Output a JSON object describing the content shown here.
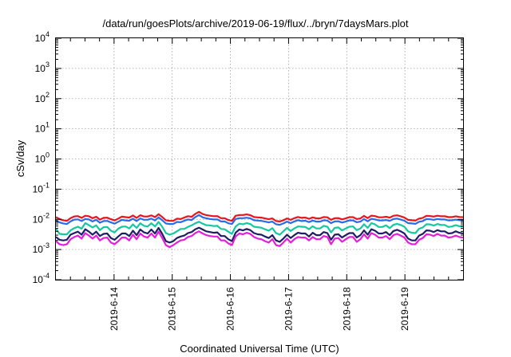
{
  "chart_data": {
    "type": "line",
    "title": "/data/run/goesPlots/archive/2019-06-19/flux/../bryn/7daysMars.plot",
    "xlabel": "Coordinated Universal Time (UTC)",
    "ylabel": "cSv/day",
    "yscale": "log",
    "ylim": [
      0.0001,
      10000
    ],
    "ytick_labels": [
      {
        "base": "10",
        "exp": "-4"
      },
      {
        "base": "10",
        "exp": "-3"
      },
      {
        "base": "10",
        "exp": "-2"
      },
      {
        "base": "10",
        "exp": "-1"
      },
      {
        "base": "10",
        "exp": "0"
      },
      {
        "base": "10",
        "exp": "1"
      },
      {
        "base": "10",
        "exp": "2"
      },
      {
        "base": "10",
        "exp": "3"
      },
      {
        "base": "10",
        "exp": "4"
      }
    ],
    "xlim": [
      "2019-06-13 00:00",
      "2019-06-20 00:00"
    ],
    "xtick_labels": [
      "2019-6-14",
      "2019-6-15",
      "2019-6-16",
      "2019-6-17",
      "2019-6-18",
      "2019-6-19"
    ],
    "grid": true,
    "legend": "none",
    "series": [
      {
        "color": "#e8141e",
        "values": [
          0.0118,
          0.0102,
          0.0093,
          0.0089,
          0.011,
          0.0125,
          0.0128,
          0.0112,
          0.0132,
          0.0126,
          0.0109,
          0.0122,
          0.0098,
          0.0112,
          0.0113,
          0.0101,
          0.0092,
          0.0106,
          0.0123,
          0.0118,
          0.0115,
          0.0134,
          0.0112,
          0.0137,
          0.0124,
          0.0124,
          0.0135,
          0.0118,
          0.0148,
          0.0119,
          0.0093,
          0.0089,
          0.0089,
          0.0105,
          0.0102,
          0.0115,
          0.0127,
          0.0121,
          0.0152,
          0.0178,
          0.015,
          0.0138,
          0.0132,
          0.0127,
          0.0128,
          0.0109,
          0.0109,
          0.0095,
          0.0089,
          0.0131,
          0.0139,
          0.0139,
          0.0145,
          0.0138,
          0.0119,
          0.0116,
          0.0114,
          0.0107,
          0.0101,
          0.0107,
          0.0088,
          0.0085,
          0.0093,
          0.0107,
          0.0096,
          0.0109,
          0.012,
          0.0112,
          0.0115,
          0.0104,
          0.0116,
          0.0108,
          0.0108,
          0.0119,
          0.0117,
          0.0096,
          0.0109,
          0.011,
          0.01,
          0.0107,
          0.0118,
          0.0118,
          0.0102,
          0.0107,
          0.013,
          0.011,
          0.0133,
          0.0128,
          0.0117,
          0.0117,
          0.0122,
          0.0114,
          0.0131,
          0.0136,
          0.0126,
          0.0115,
          0.0096,
          0.0093,
          0.0091,
          0.0106,
          0.0112,
          0.0131,
          0.0129,
          0.0123,
          0.0132,
          0.0126,
          0.0127,
          0.0118,
          0.0119,
          0.0126,
          0.012,
          0.0118
        ]
      },
      {
        "color": "#2b6be8",
        "values": [
          0.0092,
          0.0079,
          0.0073,
          0.007,
          0.0086,
          0.0098,
          0.01,
          0.0088,
          0.0103,
          0.0099,
          0.0085,
          0.0096,
          0.0077,
          0.0088,
          0.0089,
          0.0079,
          0.0072,
          0.0083,
          0.0096,
          0.0092,
          0.009,
          0.0105,
          0.0088,
          0.0107,
          0.0097,
          0.0097,
          0.0106,
          0.0092,
          0.0116,
          0.0093,
          0.0073,
          0.007,
          0.007,
          0.0082,
          0.008,
          0.009,
          0.0099,
          0.0095,
          0.0119,
          0.0139,
          0.0117,
          0.0108,
          0.0103,
          0.0099,
          0.01,
          0.0085,
          0.0085,
          0.0074,
          0.007,
          0.0102,
          0.0109,
          0.0109,
          0.0113,
          0.0108,
          0.0093,
          0.0091,
          0.0089,
          0.0084,
          0.0079,
          0.0084,
          0.0069,
          0.0066,
          0.0073,
          0.0084,
          0.0075,
          0.0085,
          0.0094,
          0.0088,
          0.009,
          0.0081,
          0.0091,
          0.0084,
          0.0084,
          0.0093,
          0.0091,
          0.0075,
          0.0085,
          0.0086,
          0.0078,
          0.0084,
          0.0092,
          0.0092,
          0.008,
          0.0084,
          0.0102,
          0.0086,
          0.0104,
          0.01,
          0.0092,
          0.0092,
          0.0095,
          0.0089,
          0.0102,
          0.0106,
          0.0098,
          0.009,
          0.0075,
          0.0073,
          0.0071,
          0.0083,
          0.0088,
          0.0102,
          0.0101,
          0.0096,
          0.0103,
          0.0099,
          0.0099,
          0.0092,
          0.0093,
          0.0098,
          0.0094,
          0.0092
        ]
      },
      {
        "color": "#14c8a0",
        "values": [
          0.0049,
          0.0033,
          0.0032,
          0.0032,
          0.0043,
          0.0051,
          0.0057,
          0.0049,
          0.0075,
          0.0064,
          0.0054,
          0.0063,
          0.0044,
          0.0055,
          0.0056,
          0.0042,
          0.0037,
          0.0049,
          0.0057,
          0.0058,
          0.005,
          0.0068,
          0.0052,
          0.0074,
          0.0061,
          0.0058,
          0.0074,
          0.0058,
          0.0082,
          0.0057,
          0.0035,
          0.0031,
          0.0034,
          0.004,
          0.0048,
          0.0048,
          0.0056,
          0.0063,
          0.0074,
          0.0083,
          0.0072,
          0.0064,
          0.0063,
          0.006,
          0.0061,
          0.0048,
          0.0047,
          0.0039,
          0.0033,
          0.0058,
          0.0072,
          0.0069,
          0.0075,
          0.007,
          0.0057,
          0.0055,
          0.0053,
          0.0047,
          0.0042,
          0.0051,
          0.0035,
          0.0031,
          0.004,
          0.0052,
          0.0041,
          0.005,
          0.0058,
          0.0057,
          0.0056,
          0.0047,
          0.0059,
          0.005,
          0.005,
          0.0061,
          0.0057,
          0.0037,
          0.0052,
          0.0054,
          0.0043,
          0.005,
          0.0057,
          0.0058,
          0.0044,
          0.005,
          0.0069,
          0.0052,
          0.0075,
          0.0068,
          0.0056,
          0.0056,
          0.0063,
          0.0051,
          0.0066,
          0.0071,
          0.0065,
          0.0057,
          0.004,
          0.0036,
          0.0035,
          0.0049,
          0.0054,
          0.0069,
          0.0068,
          0.0062,
          0.007,
          0.0065,
          0.0065,
          0.0056,
          0.0058,
          0.0064,
          0.0059,
          0.0057
        ]
      },
      {
        "color": "#1e1e64",
        "values": [
          0.0026,
          0.0021,
          0.002,
          0.0021,
          0.0031,
          0.0035,
          0.0039,
          0.0031,
          0.0047,
          0.0039,
          0.0031,
          0.0039,
          0.0028,
          0.0033,
          0.0034,
          0.0024,
          0.0021,
          0.0027,
          0.0034,
          0.0034,
          0.0028,
          0.0042,
          0.003,
          0.0046,
          0.0037,
          0.0034,
          0.0046,
          0.0034,
          0.0052,
          0.0033,
          0.0019,
          0.0017,
          0.0019,
          0.0024,
          0.0027,
          0.0029,
          0.0035,
          0.0038,
          0.0047,
          0.0053,
          0.0046,
          0.004,
          0.0038,
          0.0036,
          0.0037,
          0.0028,
          0.0028,
          0.0022,
          0.0019,
          0.0036,
          0.0046,
          0.0043,
          0.0048,
          0.0044,
          0.0035,
          0.0032,
          0.0031,
          0.0027,
          0.0024,
          0.003,
          0.002,
          0.0018,
          0.0023,
          0.0031,
          0.0024,
          0.003,
          0.0036,
          0.0034,
          0.0034,
          0.0027,
          0.0036,
          0.003,
          0.003,
          0.0038,
          0.0035,
          0.0021,
          0.0031,
          0.0032,
          0.0025,
          0.003,
          0.0035,
          0.0035,
          0.0025,
          0.003,
          0.0043,
          0.0031,
          0.0047,
          0.0042,
          0.0034,
          0.0034,
          0.0038,
          0.003,
          0.0041,
          0.0045,
          0.004,
          0.0034,
          0.0023,
          0.002,
          0.002,
          0.0029,
          0.0033,
          0.0043,
          0.0042,
          0.0038,
          0.0044,
          0.004,
          0.004,
          0.0034,
          0.0035,
          0.004,
          0.0036,
          0.0034
        ]
      },
      {
        "color": "#e61edc",
        "values": [
          0.0019,
          0.0015,
          0.0014,
          0.0015,
          0.0022,
          0.0026,
          0.0029,
          0.0023,
          0.0035,
          0.0029,
          0.0023,
          0.0029,
          0.002,
          0.0024,
          0.0025,
          0.0017,
          0.0015,
          0.0019,
          0.0025,
          0.0025,
          0.002,
          0.0031,
          0.0022,
          0.0034,
          0.0027,
          0.0025,
          0.0034,
          0.0025,
          0.0039,
          0.0024,
          0.0014,
          0.0012,
          0.0014,
          0.0017,
          0.002,
          0.0021,
          0.0026,
          0.0028,
          0.0035,
          0.004,
          0.0034,
          0.003,
          0.0028,
          0.0027,
          0.0027,
          0.002,
          0.002,
          0.0016,
          0.0014,
          0.0027,
          0.0034,
          0.0032,
          0.0036,
          0.0033,
          0.0026,
          0.0023,
          0.0022,
          0.0019,
          0.0017,
          0.0022,
          0.0014,
          0.0013,
          0.0017,
          0.0023,
          0.0017,
          0.0022,
          0.0026,
          0.0025,
          0.0025,
          0.002,
          0.0026,
          0.0022,
          0.0022,
          0.0028,
          0.0026,
          0.0015,
          0.0023,
          0.0024,
          0.0018,
          0.0022,
          0.0026,
          0.0026,
          0.0018,
          0.0022,
          0.0032,
          0.0023,
          0.0035,
          0.0031,
          0.0025,
          0.0025,
          0.0028,
          0.0022,
          0.003,
          0.0033,
          0.0029,
          0.0025,
          0.0017,
          0.0015,
          0.0015,
          0.0021,
          0.0024,
          0.0032,
          0.0031,
          0.0028,
          0.0033,
          0.0029,
          0.0029,
          0.0025,
          0.0026,
          0.0029,
          0.0026,
          0.0025
        ]
      }
    ]
  }
}
